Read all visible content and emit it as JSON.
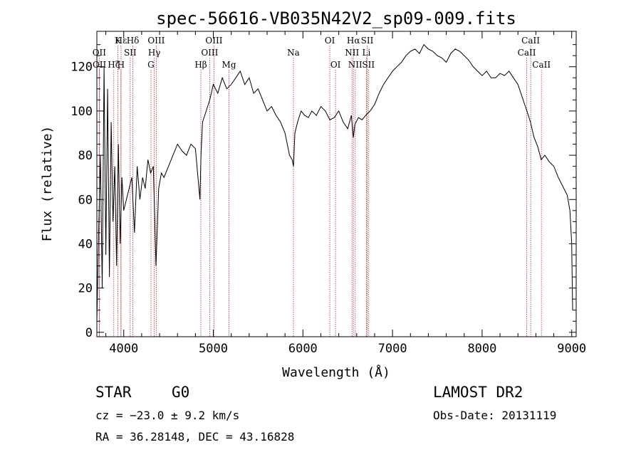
{
  "chart_data": {
    "type": "line",
    "title": "spec-56616-VB035N42V2_sp09-009.fits",
    "xlabel": "Wavelength (Å)",
    "ylabel": "Flux (relative)",
    "xlim": [
      3700,
      9050
    ],
    "ylim": [
      -2,
      136
    ],
    "xticks": [
      4000,
      5000,
      6000,
      7000,
      8000,
      9000
    ],
    "yticks": [
      0,
      20,
      40,
      60,
      80,
      100,
      120
    ],
    "grid": false,
    "series": [
      {
        "x": [
          3700,
          3720,
          3740,
          3760,
          3780,
          3800,
          3820,
          3840,
          3860,
          3880,
          3900,
          3920,
          3940,
          3960,
          3980,
          4000,
          4030,
          4060,
          4090,
          4120,
          4150,
          4180,
          4210,
          4240,
          4270,
          4300,
          4330,
          4360,
          4390,
          4420,
          4450,
          4500,
          4550,
          4600,
          4650,
          4700,
          4750,
          4800,
          4850,
          4862,
          4880,
          4920,
          4960,
          5000,
          5050,
          5100,
          5150,
          5200,
          5250,
          5300,
          5350,
          5400,
          5450,
          5500,
          5550,
          5600,
          5650,
          5700,
          5750,
          5800,
          5850,
          5880,
          5895,
          5910,
          5940,
          5980,
          6020,
          6060,
          6100,
          6150,
          6200,
          6250,
          6300,
          6350,
          6400,
          6450,
          6500,
          6540,
          6563,
          6580,
          6620,
          6660,
          6700,
          6750,
          6800,
          6850,
          6900,
          6950,
          7000,
          7050,
          7100,
          7150,
          7200,
          7250,
          7300,
          7350,
          7400,
          7450,
          7500,
          7550,
          7600,
          7650,
          7700,
          7750,
          7800,
          7850,
          7900,
          7950,
          8000,
          8050,
          8100,
          8150,
          8200,
          8250,
          8300,
          8350,
          8400,
          8450,
          8500,
          8540,
          8580,
          8620,
          8660,
          8700,
          8750,
          8800,
          8850,
          8900,
          8950,
          8980,
          9000,
          9010
        ],
        "y": [
          5,
          45,
          80,
          20,
          120,
          35,
          110,
          25,
          95,
          50,
          75,
          30,
          85,
          40,
          70,
          55,
          60,
          65,
          70,
          45,
          75,
          60,
          70,
          65,
          78,
          72,
          75,
          30,
          65,
          72,
          70,
          75,
          80,
          85,
          82,
          80,
          85,
          83,
          60,
          80,
          95,
          100,
          105,
          112,
          108,
          115,
          110,
          112,
          115,
          118,
          112,
          115,
          108,
          110,
          105,
          100,
          102,
          98,
          95,
          90,
          80,
          78,
          75,
          90,
          95,
          100,
          98,
          97,
          100,
          98,
          102,
          100,
          96,
          97,
          100,
          95,
          92,
          98,
          88,
          94,
          97,
          96,
          98,
          100,
          103,
          108,
          112,
          115,
          118,
          120,
          122,
          125,
          127,
          128,
          126,
          130,
          128,
          127,
          125,
          124,
          122,
          126,
          128,
          127,
          125,
          123,
          120,
          118,
          116,
          118,
          115,
          115,
          117,
          116,
          118,
          115,
          112,
          106,
          100,
          95,
          88,
          84,
          78,
          80,
          77,
          75,
          70,
          66,
          62,
          55,
          40,
          10
        ]
      }
    ],
    "line_markers": [
      {
        "label": "Hε",
        "x": 3970,
        "row": 1
      },
      {
        "label": "K",
        "x": 3934,
        "row": 1
      },
      {
        "label": "Hδ",
        "x": 4102,
        "row": 1
      },
      {
        "label": "OII",
        "x": 3727,
        "row": 2
      },
      {
        "label": "OII",
        "x": 3729,
        "row": 3
      },
      {
        "label": "Hζ",
        "x": 3889,
        "row": 3
      },
      {
        "label": "H",
        "x": 3969,
        "row": 3
      },
      {
        "label": "SII",
        "x": 4072,
        "row": 2
      },
      {
        "label": "OIII",
        "x": 4363,
        "row": 1
      },
      {
        "label": "Hγ",
        "x": 4341,
        "row": 2
      },
      {
        "label": "G",
        "x": 4304,
        "row": 3
      },
      {
        "label": "OIII",
        "x": 5007,
        "row": 1
      },
      {
        "label": "OIII",
        "x": 4959,
        "row": 2
      },
      {
        "label": "Hβ",
        "x": 4861,
        "row": 3
      },
      {
        "label": "Mg",
        "x": 5175,
        "row": 3
      },
      {
        "label": "Na",
        "x": 5894,
        "row": 2
      },
      {
        "label": "OI",
        "x": 6300,
        "row": 1
      },
      {
        "label": "OI",
        "x": 6364,
        "row": 3
      },
      {
        "label": "Hα",
        "x": 6563,
        "row": 1
      },
      {
        "label": "NII",
        "x": 6548,
        "row": 2
      },
      {
        "label": "NII",
        "x": 6584,
        "row": 3
      },
      {
        "label": "SII",
        "x": 6717,
        "row": 1
      },
      {
        "label": "Li",
        "x": 6708,
        "row": 2
      },
      {
        "label": "SII",
        "x": 6731,
        "row": 3
      },
      {
        "label": "CaII",
        "x": 8542,
        "row": 1
      },
      {
        "label": "CaII",
        "x": 8498,
        "row": 2
      },
      {
        "label": "CaII",
        "x": 8662,
        "row": 3
      }
    ]
  },
  "info": {
    "object_class": "STAR",
    "subclass": "G0",
    "survey": "LAMOST DR2",
    "cz": "cz = −23.0 ± 9.2 km/s",
    "obs_date": "Obs-Date: 20131119",
    "coords": "RA =  36.28148, DEC =  43.16828"
  }
}
